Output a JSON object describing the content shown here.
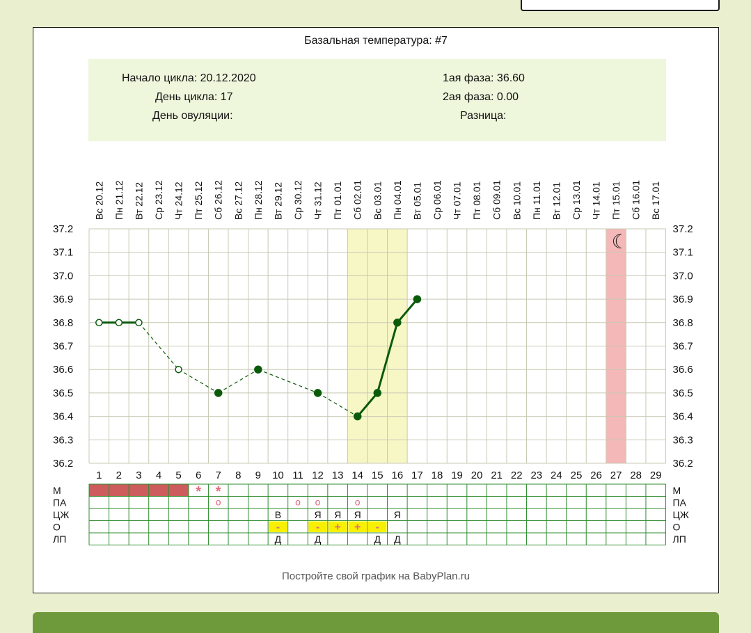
{
  "chart_data": {
    "type": "line",
    "title": "Базальная температура: #7",
    "info": {
      "cycle_start": "Начало цикла: 20.12.2020",
      "cycle_day": "День цикла: 17",
      "ovulation_day": "День овуляции:",
      "phase1": "1ая фаза: 36.60",
      "phase2": "2ая фаза: 0.00",
      "difference": "Разница:"
    },
    "dates": [
      "Вс 20.12",
      "Пн 21.12",
      "Вт 22.12",
      "Ср 23.12",
      "Чт 24.12",
      "Пт 25.12",
      "Сб 26.12",
      "Вс 27.12",
      "Пн 28.12",
      "Вт 29.12",
      "Ср 30.12",
      "Чт 31.12",
      "Пт 01.01",
      "Сб 02.01",
      "Вс 03.01",
      "Пн 04.01",
      "Вт 05.01",
      "Ср 06.01",
      "Чт 07.01",
      "Пт 08.01",
      "Сб 09.01",
      "Вс 10.01",
      "Пн 11.01",
      "Вт 12.01",
      "Ср 13.01",
      "Чт 14.01",
      "Пт 15.01",
      "Сб 16.01",
      "Вс 17.01"
    ],
    "days": [
      "1",
      "2",
      "3",
      "4",
      "5",
      "6",
      "7",
      "8",
      "9",
      "10",
      "11",
      "12",
      "13",
      "14",
      "15",
      "16",
      "17",
      "18",
      "19",
      "20",
      "21",
      "22",
      "23",
      "24",
      "25",
      "26",
      "27",
      "28",
      "29"
    ],
    "y_ticks": [
      "37.2",
      "37.1",
      "37.0",
      "36.9",
      "36.8",
      "36.7",
      "36.6",
      "36.5",
      "36.4",
      "36.3",
      "36.2"
    ],
    "ylim": [
      36.2,
      37.2
    ],
    "points": [
      {
        "day": 1,
        "temp": 36.8,
        "filled": false
      },
      {
        "day": 2,
        "temp": 36.8,
        "filled": false
      },
      {
        "day": 3,
        "temp": 36.8,
        "filled": false
      },
      {
        "day": 5,
        "temp": 36.6,
        "filled": false
      },
      {
        "day": 7,
        "temp": 36.5,
        "filled": true
      },
      {
        "day": 9,
        "temp": 36.6,
        "filled": true
      },
      {
        "day": 12,
        "temp": 36.5,
        "filled": true
      },
      {
        "day": 14,
        "temp": 36.4,
        "filled": true
      },
      {
        "day": 15,
        "temp": 36.5,
        "filled": true
      },
      {
        "day": 16,
        "temp": 36.8,
        "filled": true
      },
      {
        "day": 17,
        "temp": 36.9,
        "filled": true
      }
    ],
    "segments": [
      {
        "from": 1,
        "to": 2,
        "style": "solid"
      },
      {
        "from": 2,
        "to": 3,
        "style": "solid"
      },
      {
        "from": 3,
        "to": 5,
        "style": "dashed"
      },
      {
        "from": 5,
        "to": 7,
        "style": "dashed"
      },
      {
        "from": 7,
        "to": 9,
        "style": "dashed"
      },
      {
        "from": 9,
        "to": 12,
        "style": "dashed"
      },
      {
        "from": 12,
        "to": 14,
        "style": "dashed"
      },
      {
        "from": 14,
        "to": 15,
        "style": "solid"
      },
      {
        "from": 15,
        "to": 16,
        "style": "solid"
      },
      {
        "from": 16,
        "to": 17,
        "style": "solid"
      }
    ],
    "fertile_window": {
      "start_day": 14,
      "end_day": 16,
      "color": "#f7f7c6"
    },
    "predicted_period": {
      "day": 27,
      "color": "#f4b8b8",
      "icon": "moon-icon",
      "glyph": "☾"
    },
    "line_color": "#0a5a0a",
    "grid_color": "#c8c8b4",
    "legend": {
      "labels": [
        "М",
        "ПА",
        "ЦЖ",
        "О",
        "ЛП"
      ],
      "menstruation": {
        "days": [
          1,
          2,
          3,
          4,
          5
        ],
        "color": "#cd5c5c"
      },
      "stars": {
        "days": [
          6,
          7
        ],
        "glyph": "*"
      },
      "pa": {
        "days": [
          7,
          11,
          12,
          14
        ],
        "glyph": "о"
      },
      "cervical": [
        {
          "day": 10,
          "value": "В"
        },
        {
          "day": 12,
          "value": "Я"
        },
        {
          "day": 13,
          "value": "Я"
        },
        {
          "day": 14,
          "value": "Я"
        },
        {
          "day": 16,
          "value": "Я"
        }
      ],
      "ovulation_tests": [
        {
          "day": 10,
          "value": "-"
        },
        {
          "day": 12,
          "value": "-"
        },
        {
          "day": 13,
          "value": "+"
        },
        {
          "day": 14,
          "value": "+"
        },
        {
          "day": 15,
          "value": "-"
        }
      ],
      "ovulation_color": "#f7f000",
      "lp": [
        {
          "day": 10,
          "value": "Д"
        },
        {
          "day": 12,
          "value": "Д"
        },
        {
          "day": 15,
          "value": "Д"
        },
        {
          "day": 16,
          "value": "Д"
        }
      ]
    },
    "footer": "Постройте свой график на BabyPlan.ru"
  }
}
